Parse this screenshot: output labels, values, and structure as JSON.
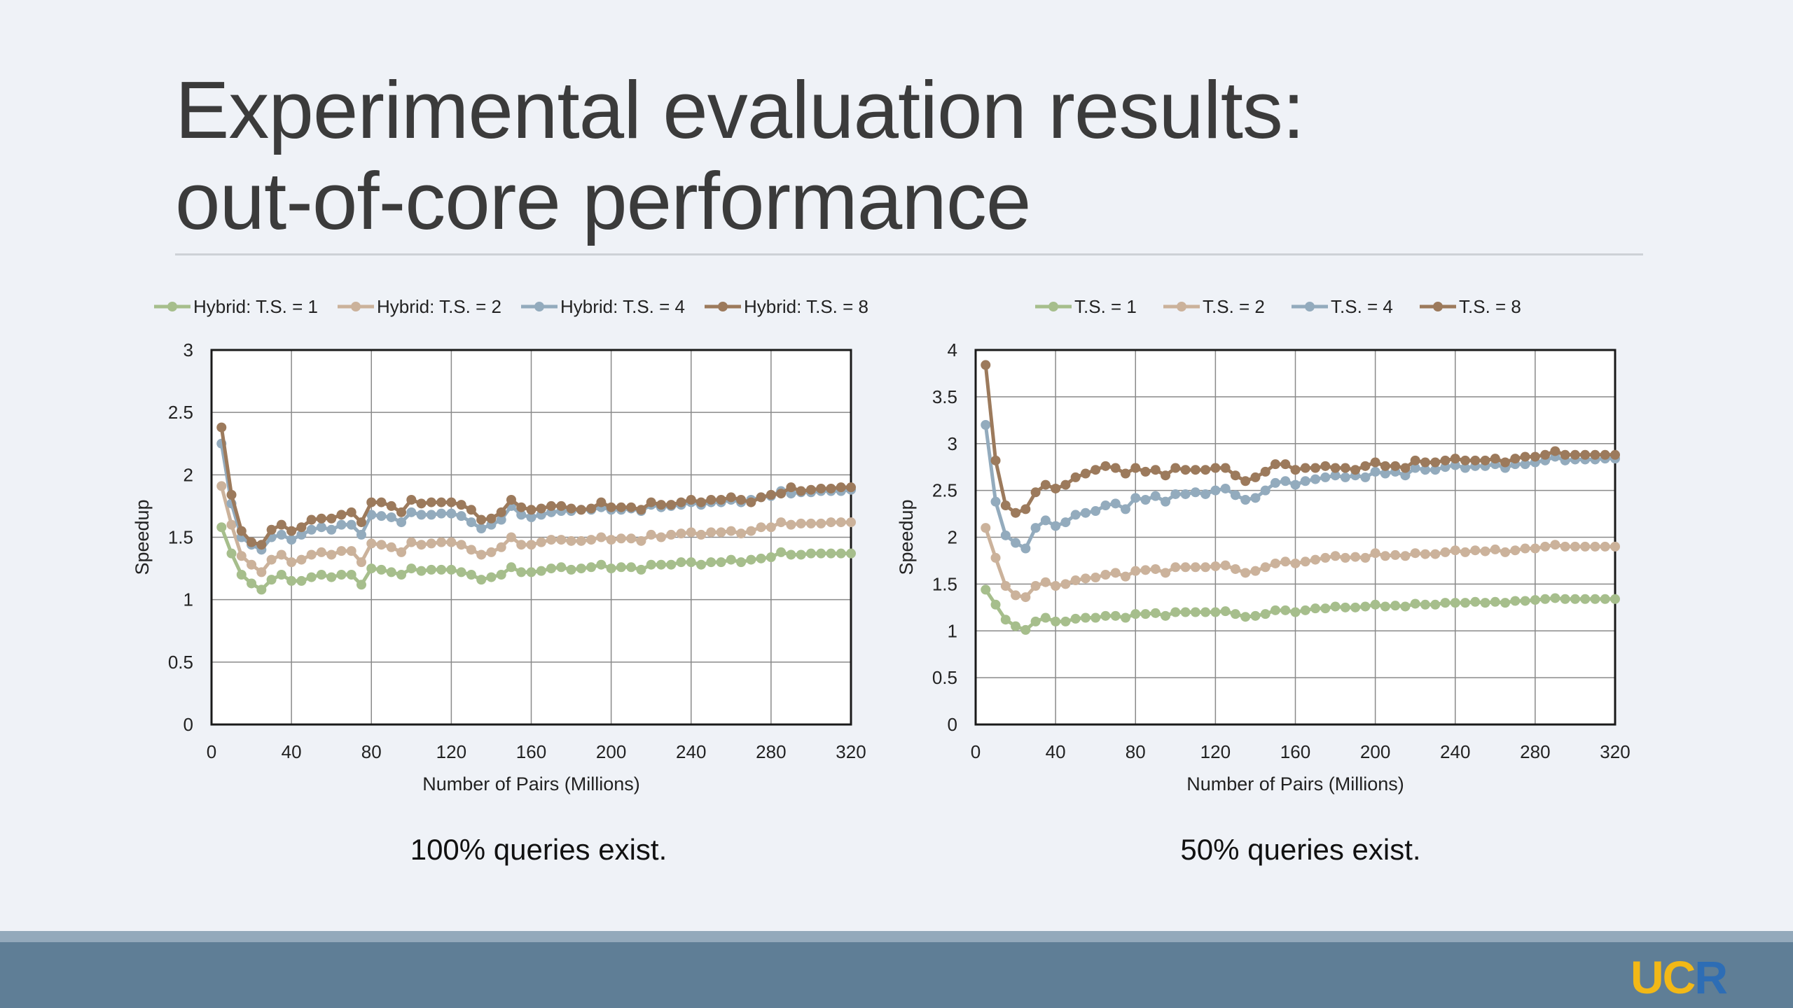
{
  "slide": {
    "title_line1": "Experimental evaluation results:",
    "title_line2": "out-of-core performance",
    "caption_left": "100% queries exist.",
    "caption_right": "50% queries exist.",
    "logo": {
      "u": "U",
      "c": "C",
      "r": "R"
    }
  },
  "chart_data": [
    {
      "type": "line",
      "xlabel": "Number of Pairs (Millions)",
      "ylabel": "Speedup",
      "xlim": [
        0,
        320
      ],
      "ylim": [
        0,
        3
      ],
      "xticks": [
        0,
        40,
        80,
        120,
        160,
        200,
        240,
        280,
        320
      ],
      "yticks": [
        0,
        0.5,
        1,
        1.5,
        2,
        2.5,
        3
      ],
      "ytick_labels": [
        "0",
        "0.5",
        "1",
        "1.5",
        "2",
        "2.5",
        "3"
      ],
      "grid": true,
      "legend_position": "top",
      "x": [
        5,
        10,
        15,
        20,
        25,
        30,
        35,
        40,
        45,
        50,
        55,
        60,
        65,
        70,
        75,
        80,
        85,
        90,
        95,
        100,
        105,
        110,
        115,
        120,
        125,
        130,
        135,
        140,
        145,
        150,
        155,
        160,
        165,
        170,
        175,
        180,
        185,
        190,
        195,
        200,
        205,
        210,
        215,
        220,
        225,
        230,
        235,
        240,
        245,
        250,
        255,
        260,
        265,
        270,
        275,
        280,
        285,
        290,
        295,
        300,
        305,
        310,
        315,
        320
      ],
      "series": [
        {
          "name": "Hybrid: T.S. = 1",
          "color": "#a6be8c",
          "values": [
            1.58,
            1.37,
            1.2,
            1.13,
            1.08,
            1.16,
            1.2,
            1.15,
            1.15,
            1.18,
            1.2,
            1.18,
            1.2,
            1.2,
            1.12,
            1.25,
            1.24,
            1.22,
            1.2,
            1.25,
            1.23,
            1.24,
            1.24,
            1.24,
            1.22,
            1.2,
            1.16,
            1.18,
            1.2,
            1.26,
            1.22,
            1.22,
            1.23,
            1.25,
            1.26,
            1.24,
            1.25,
            1.26,
            1.28,
            1.25,
            1.26,
            1.26,
            1.24,
            1.28,
            1.28,
            1.28,
            1.3,
            1.3,
            1.28,
            1.3,
            1.3,
            1.32,
            1.3,
            1.32,
            1.33,
            1.34,
            1.38,
            1.36,
            1.36,
            1.37,
            1.37,
            1.37,
            1.37,
            1.37
          ]
        },
        {
          "name": "Hybrid: T.S. = 2",
          "color": "#cbb29b",
          "values": [
            1.91,
            1.6,
            1.35,
            1.28,
            1.22,
            1.32,
            1.36,
            1.3,
            1.32,
            1.36,
            1.38,
            1.36,
            1.39,
            1.39,
            1.3,
            1.45,
            1.44,
            1.42,
            1.38,
            1.46,
            1.44,
            1.45,
            1.46,
            1.46,
            1.44,
            1.4,
            1.36,
            1.38,
            1.42,
            1.5,
            1.44,
            1.44,
            1.46,
            1.48,
            1.48,
            1.47,
            1.47,
            1.48,
            1.5,
            1.48,
            1.49,
            1.49,
            1.47,
            1.52,
            1.5,
            1.52,
            1.53,
            1.54,
            1.52,
            1.54,
            1.54,
            1.55,
            1.53,
            1.55,
            1.58,
            1.58,
            1.62,
            1.6,
            1.61,
            1.61,
            1.61,
            1.62,
            1.62,
            1.62
          ]
        },
        {
          "name": "Hybrid: T.S. = 4",
          "color": "#93abbd",
          "values": [
            2.25,
            1.77,
            1.5,
            1.44,
            1.4,
            1.5,
            1.52,
            1.48,
            1.52,
            1.56,
            1.58,
            1.56,
            1.6,
            1.6,
            1.52,
            1.68,
            1.67,
            1.66,
            1.62,
            1.7,
            1.68,
            1.68,
            1.69,
            1.69,
            1.67,
            1.62,
            1.57,
            1.6,
            1.64,
            1.75,
            1.68,
            1.66,
            1.68,
            1.7,
            1.71,
            1.71,
            1.72,
            1.72,
            1.74,
            1.72,
            1.72,
            1.73,
            1.71,
            1.76,
            1.74,
            1.75,
            1.76,
            1.78,
            1.76,
            1.78,
            1.78,
            1.8,
            1.78,
            1.8,
            1.82,
            1.83,
            1.87,
            1.85,
            1.86,
            1.86,
            1.87,
            1.87,
            1.87,
            1.88
          ]
        },
        {
          "name": "Hybrid: T.S. = 8",
          "color": "#9c7a5c",
          "values": [
            2.38,
            1.84,
            1.55,
            1.46,
            1.44,
            1.56,
            1.6,
            1.55,
            1.58,
            1.64,
            1.65,
            1.65,
            1.68,
            1.7,
            1.62,
            1.78,
            1.78,
            1.75,
            1.7,
            1.8,
            1.77,
            1.78,
            1.78,
            1.78,
            1.76,
            1.72,
            1.64,
            1.65,
            1.7,
            1.8,
            1.74,
            1.72,
            1.73,
            1.75,
            1.75,
            1.73,
            1.72,
            1.73,
            1.78,
            1.74,
            1.74,
            1.74,
            1.72,
            1.78,
            1.76,
            1.76,
            1.78,
            1.8,
            1.78,
            1.8,
            1.8,
            1.82,
            1.8,
            1.78,
            1.82,
            1.84,
            1.85,
            1.9,
            1.87,
            1.88,
            1.89,
            1.89,
            1.9,
            1.9
          ]
        }
      ]
    },
    {
      "type": "line",
      "xlabel": "Number of Pairs (Millions)",
      "ylabel": "Speedup",
      "xlim": [
        0,
        320
      ],
      "ylim": [
        0,
        4
      ],
      "xticks": [
        0,
        40,
        80,
        120,
        160,
        200,
        240,
        280,
        320
      ],
      "yticks": [
        0,
        0.5,
        1,
        1.5,
        2,
        2.5,
        3,
        3.5,
        4
      ],
      "ytick_labels": [
        "0",
        "0.5",
        "1",
        "1.5",
        "2",
        "2.5",
        "3",
        "3.5",
        "4"
      ],
      "grid": true,
      "legend_position": "top",
      "x": [
        5,
        10,
        15,
        20,
        25,
        30,
        35,
        40,
        45,
        50,
        55,
        60,
        65,
        70,
        75,
        80,
        85,
        90,
        95,
        100,
        105,
        110,
        115,
        120,
        125,
        130,
        135,
        140,
        145,
        150,
        155,
        160,
        165,
        170,
        175,
        180,
        185,
        190,
        195,
        200,
        205,
        210,
        215,
        220,
        225,
        230,
        235,
        240,
        245,
        250,
        255,
        260,
        265,
        270,
        275,
        280,
        285,
        290,
        295,
        300,
        305,
        310,
        315,
        320
      ],
      "series": [
        {
          "name": "T.S. = 1",
          "color": "#a6be8c",
          "values": [
            1.44,
            1.28,
            1.12,
            1.05,
            1.01,
            1.1,
            1.14,
            1.1,
            1.1,
            1.13,
            1.14,
            1.14,
            1.16,
            1.16,
            1.14,
            1.18,
            1.18,
            1.19,
            1.16,
            1.2,
            1.2,
            1.2,
            1.2,
            1.2,
            1.21,
            1.18,
            1.15,
            1.16,
            1.18,
            1.22,
            1.22,
            1.2,
            1.22,
            1.24,
            1.24,
            1.26,
            1.25,
            1.25,
            1.26,
            1.28,
            1.26,
            1.27,
            1.26,
            1.29,
            1.28,
            1.28,
            1.3,
            1.3,
            1.3,
            1.31,
            1.3,
            1.31,
            1.3,
            1.32,
            1.32,
            1.33,
            1.34,
            1.35,
            1.34,
            1.34,
            1.34,
            1.34,
            1.34,
            1.34
          ]
        },
        {
          "name": "T.S. = 2",
          "color": "#cbb29b",
          "values": [
            2.1,
            1.78,
            1.48,
            1.38,
            1.36,
            1.48,
            1.52,
            1.48,
            1.5,
            1.54,
            1.56,
            1.57,
            1.6,
            1.62,
            1.58,
            1.64,
            1.65,
            1.66,
            1.62,
            1.68,
            1.68,
            1.68,
            1.68,
            1.69,
            1.7,
            1.66,
            1.62,
            1.64,
            1.68,
            1.72,
            1.74,
            1.72,
            1.74,
            1.76,
            1.78,
            1.8,
            1.78,
            1.79,
            1.78,
            1.83,
            1.8,
            1.81,
            1.8,
            1.83,
            1.82,
            1.82,
            1.84,
            1.86,
            1.84,
            1.86,
            1.85,
            1.87,
            1.84,
            1.86,
            1.88,
            1.88,
            1.9,
            1.92,
            1.9,
            1.9,
            1.9,
            1.9,
            1.9,
            1.9
          ]
        },
        {
          "name": "T.S. = 4",
          "color": "#93abbd",
          "values": [
            3.2,
            2.38,
            2.02,
            1.94,
            1.88,
            2.1,
            2.18,
            2.12,
            2.16,
            2.24,
            2.26,
            2.28,
            2.34,
            2.36,
            2.3,
            2.42,
            2.4,
            2.44,
            2.38,
            2.46,
            2.46,
            2.48,
            2.46,
            2.5,
            2.52,
            2.45,
            2.4,
            2.42,
            2.5,
            2.58,
            2.6,
            2.56,
            2.6,
            2.62,
            2.64,
            2.66,
            2.64,
            2.66,
            2.64,
            2.7,
            2.68,
            2.7,
            2.66,
            2.74,
            2.72,
            2.72,
            2.75,
            2.77,
            2.74,
            2.76,
            2.76,
            2.78,
            2.74,
            2.78,
            2.78,
            2.8,
            2.82,
            2.86,
            2.82,
            2.83,
            2.83,
            2.83,
            2.84,
            2.84
          ]
        },
        {
          "name": "T.S. = 8",
          "color": "#9c7a5c",
          "values": [
            3.84,
            2.82,
            2.34,
            2.26,
            2.3,
            2.48,
            2.56,
            2.52,
            2.56,
            2.64,
            2.68,
            2.72,
            2.76,
            2.74,
            2.68,
            2.74,
            2.7,
            2.72,
            2.66,
            2.74,
            2.72,
            2.72,
            2.72,
            2.74,
            2.74,
            2.66,
            2.6,
            2.64,
            2.7,
            2.78,
            2.78,
            2.72,
            2.74,
            2.74,
            2.76,
            2.74,
            2.74,
            2.72,
            2.76,
            2.8,
            2.76,
            2.76,
            2.74,
            2.82,
            2.8,
            2.8,
            2.82,
            2.84,
            2.82,
            2.82,
            2.82,
            2.84,
            2.8,
            2.84,
            2.86,
            2.86,
            2.88,
            2.92,
            2.88,
            2.88,
            2.88,
            2.88,
            2.88,
            2.88
          ]
        }
      ]
    }
  ]
}
